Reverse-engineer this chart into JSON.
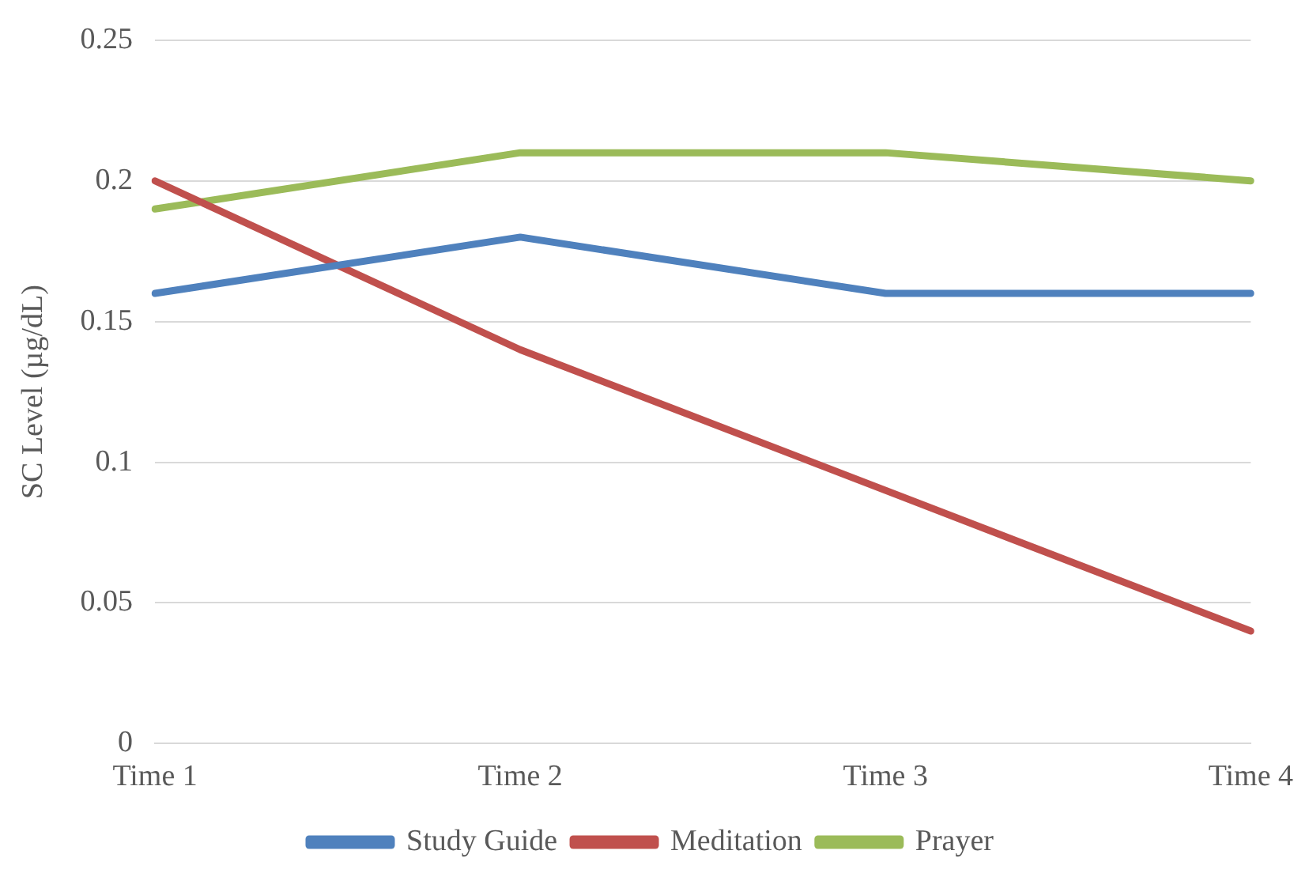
{
  "chart_data": {
    "type": "line",
    "ylabel": "SC Level (µg/dL)",
    "categories": [
      "Time 1",
      "Time 2",
      "Time 3",
      "Time 4"
    ],
    "series": [
      {
        "name": "Study Guide",
        "color": "#4f81bd",
        "values": [
          0.16,
          0.18,
          0.16,
          0.16
        ]
      },
      {
        "name": "Meditation",
        "color": "#c0504d",
        "values": [
          0.2,
          0.14,
          0.09,
          0.04
        ]
      },
      {
        "name": "Prayer",
        "color": "#9bbb59",
        "values": [
          0.19,
          0.21,
          0.21,
          0.2
        ]
      }
    ],
    "ylim": [
      0,
      0.25
    ],
    "yticks": [
      0,
      0.05,
      0.1,
      0.15,
      0.2,
      0.25
    ],
    "grid": "y",
    "legend": "bottom",
    "marker": "none",
    "line_style": "solid"
  }
}
